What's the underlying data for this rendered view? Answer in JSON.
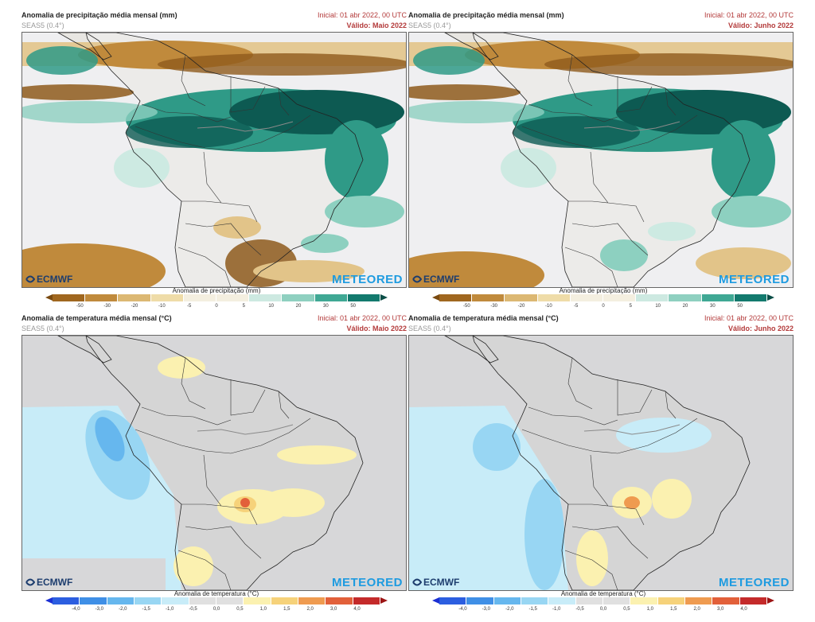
{
  "panels": [
    {
      "title": "Anomalia de precipitação média mensal (mm)",
      "subtitle": "SEAS5 (0.4°)",
      "initial": "Inicial: 01 abr 2022, 00 UTC",
      "valid": "Válido: Maio 2022",
      "kind": "precip",
      "month": "may"
    },
    {
      "title": "Anomalia de precipitação média mensal (mm)",
      "subtitle": "SEAS5 (0.4°)",
      "initial": "Inicial: 01 abr 2022, 00 UTC",
      "valid": "Válido: Junho 2022",
      "kind": "precip",
      "month": "jun"
    },
    {
      "title": "Anomalia de temperatura média mensal (°C)",
      "subtitle": "SEAS5 (0.4°)",
      "initial": "Inicial: 01 abr 2022, 00 UTC",
      "valid": "Válido: Maio 2022",
      "kind": "temp",
      "month": "may"
    },
    {
      "title": "Anomalia de temperatura média mensal (°C)",
      "subtitle": "SEAS5 (0.4°)",
      "initial": "Inicial: 01 abr 2022, 00 UTC",
      "valid": "Válido: Junho 2022",
      "kind": "temp",
      "month": "jun"
    }
  ],
  "logos": {
    "ecmwf": "ECMWF",
    "meteored": "METEORED"
  },
  "precip_scale": {
    "title": "Anomalia de precipitação (mm)",
    "ticks": [
      "-50",
      "-30",
      "-20",
      "-10",
      "-5",
      "0",
      "5",
      "10",
      "20",
      "30",
      "50"
    ],
    "colors": [
      "#7a4a10",
      "#a0671f",
      "#c08a3c",
      "#dcb873",
      "#efdca8",
      "#f4efe0",
      "#f4efe0",
      "#cde9e1",
      "#8fd0c0",
      "#3fa894",
      "#137a6e",
      "#0b4e47"
    ]
  },
  "temp_scale": {
    "title": "Anomalia de temperatura (°C)",
    "ticks": [
      "-4,0",
      "-3,0",
      "-2,0",
      "-1,5",
      "-1,0",
      "-0,5",
      "0,0",
      "0,5",
      "1,0",
      "1,5",
      "2,0",
      "3,0",
      "4,0"
    ],
    "colors": [
      "#1b2fd4",
      "#2c5ee0",
      "#3f8fe6",
      "#66b7ee",
      "#98d6f3",
      "#c8ecf8",
      "#e0e0e0",
      "#e0e0e0",
      "#fbf1b0",
      "#f6d27a",
      "#ef9b50",
      "#e2603a",
      "#c42a2a",
      "#9c1414"
    ]
  }
}
